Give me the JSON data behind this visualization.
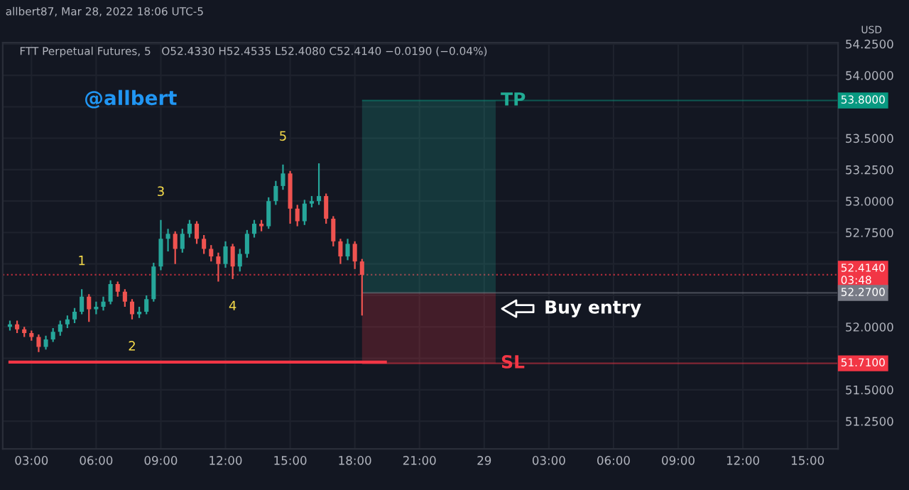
{
  "chart_data": {
    "type": "candlestick",
    "title": "allbert87, Mar 28, 2022 18:06 UTC-5",
    "subtitle": "FTT Perpetual Futures, 5   O52.4330 H52.4535 L52.4080 C52.4140 −0.0190 (−0.04%)",
    "ylabel": "USD",
    "series": [
      {
        "x": [
          "2022-03-28T02:00",
          "2022-03-28T02:20",
          "2022-03-28T02:40",
          "2022-03-28T03:00",
          "2022-03-28T03:20",
          "2022-03-28T03:40",
          "2022-03-28T04:00",
          "2022-03-28T04:20",
          "2022-03-28T04:40",
          "2022-03-28T05:00",
          "2022-03-28T05:20",
          "2022-03-28T05:40",
          "2022-03-28T06:00",
          "2022-03-28T06:20",
          "2022-03-28T06:40",
          "2022-03-28T07:00",
          "2022-03-28T07:20",
          "2022-03-28T07:40",
          "2022-03-28T08:00",
          "2022-03-28T08:20",
          "2022-03-28T08:40",
          "2022-03-28T09:00",
          "2022-03-28T09:20",
          "2022-03-28T09:40",
          "2022-03-28T10:00",
          "2022-03-28T10:20",
          "2022-03-28T10:40",
          "2022-03-28T11:00",
          "2022-03-28T11:20",
          "2022-03-28T11:40",
          "2022-03-28T12:00",
          "2022-03-28T12:20",
          "2022-03-28T12:40",
          "2022-03-28T13:00",
          "2022-03-28T13:20",
          "2022-03-28T13:40",
          "2022-03-28T14:00",
          "2022-03-28T14:20",
          "2022-03-28T14:40",
          "2022-03-28T15:00",
          "2022-03-28T15:20",
          "2022-03-28T15:40",
          "2022-03-28T16:00",
          "2022-03-28T16:20",
          "2022-03-28T16:40",
          "2022-03-28T17:00",
          "2022-03-28T17:20",
          "2022-03-28T17:40",
          "2022-03-28T18:00",
          "2022-03-28T18:20"
        ],
        "ohlc": [
          [
            52.0,
            52.05,
            51.97,
            52.02
          ],
          [
            52.02,
            52.05,
            51.95,
            51.98
          ],
          [
            51.98,
            52.0,
            51.92,
            51.95
          ],
          [
            51.95,
            51.97,
            51.89,
            51.92
          ],
          [
            51.92,
            51.94,
            51.8,
            51.84
          ],
          [
            51.84,
            51.93,
            51.82,
            51.9
          ],
          [
            51.9,
            51.99,
            51.88,
            51.96
          ],
          [
            51.96,
            52.05,
            51.93,
            52.02
          ],
          [
            52.02,
            52.09,
            51.99,
            52.06
          ],
          [
            52.06,
            52.15,
            52.03,
            52.12
          ],
          [
            52.12,
            52.3,
            52.1,
            52.24
          ],
          [
            52.24,
            52.26,
            52.04,
            52.14
          ],
          [
            52.14,
            52.2,
            52.1,
            52.16
          ],
          [
            52.16,
            52.24,
            52.13,
            52.2
          ],
          [
            52.2,
            52.37,
            52.18,
            52.34
          ],
          [
            52.34,
            52.36,
            52.24,
            52.28
          ],
          [
            52.28,
            52.3,
            52.16,
            52.2
          ],
          [
            52.2,
            52.22,
            52.06,
            52.1
          ],
          [
            52.1,
            52.16,
            52.07,
            52.12
          ],
          [
            52.12,
            52.25,
            52.1,
            52.22
          ],
          [
            52.22,
            52.51,
            52.2,
            52.48
          ],
          [
            52.48,
            52.85,
            52.45,
            52.7
          ],
          [
            52.7,
            52.78,
            52.6,
            52.74
          ],
          [
            52.74,
            52.76,
            52.5,
            52.62
          ],
          [
            52.62,
            52.78,
            52.59,
            52.74
          ],
          [
            52.74,
            52.85,
            52.71,
            52.82
          ],
          [
            52.82,
            52.84,
            52.66,
            52.7
          ],
          [
            52.7,
            52.73,
            52.58,
            52.62
          ],
          [
            52.62,
            52.65,
            52.52,
            52.56
          ],
          [
            52.56,
            52.59,
            52.36,
            52.5
          ],
          [
            52.5,
            52.68,
            52.47,
            52.64
          ],
          [
            52.64,
            52.66,
            52.38,
            52.48
          ],
          [
            52.48,
            52.62,
            52.44,
            52.58
          ],
          [
            52.58,
            52.77,
            52.55,
            52.74
          ],
          [
            52.74,
            52.85,
            52.71,
            52.82
          ],
          [
            52.82,
            52.85,
            52.76,
            52.8
          ],
          [
            52.8,
            53.03,
            52.78,
            53.0
          ],
          [
            53.0,
            53.16,
            52.97,
            53.12
          ],
          [
            53.12,
            53.29,
            53.09,
            53.22
          ],
          [
            53.22,
            53.24,
            52.82,
            52.94
          ],
          [
            52.94,
            52.97,
            52.8,
            52.84
          ],
          [
            52.84,
            53.01,
            52.81,
            52.98
          ],
          [
            52.98,
            53.04,
            52.95,
            53.0
          ],
          [
            53.0,
            53.3,
            52.97,
            53.04
          ],
          [
            53.04,
            53.06,
            52.82,
            52.86
          ],
          [
            52.86,
            52.88,
            52.64,
            52.68
          ],
          [
            52.68,
            52.7,
            52.5,
            52.56
          ],
          [
            52.56,
            52.7,
            52.53,
            52.66
          ],
          [
            52.66,
            52.68,
            52.46,
            52.52
          ],
          [
            52.52,
            52.54,
            52.09,
            52.414
          ]
        ]
      },
      {
        "type": "line",
        "color": "#f23645",
        "x": [
          "2022-03-28T02:00",
          "2022-03-28T19:25"
        ],
        "values": [
          51.72,
          51.72
        ]
      }
    ],
    "xlim": [
      "2022-03-28T01:40",
      "2022-03-29T16:25"
    ],
    "xticks": [
      {
        "value": "2022-03-28T03:00",
        "label": "03:00"
      },
      {
        "value": "2022-03-28T06:00",
        "label": "06:00"
      },
      {
        "value": "2022-03-28T09:00",
        "label": "09:00"
      },
      {
        "value": "2022-03-28T12:00",
        "label": "12:00"
      },
      {
        "value": "2022-03-28T15:00",
        "label": "15:00"
      },
      {
        "value": "2022-03-28T18:00",
        "label": "18:00"
      },
      {
        "value": "2022-03-28T21:00",
        "label": "21:00"
      },
      {
        "value": "2022-03-29",
        "label": "29"
      },
      {
        "value": "2022-03-29T03:00",
        "label": "03:00"
      },
      {
        "value": "2022-03-29T06:00",
        "label": "06:00"
      },
      {
        "value": "2022-03-29T09:00",
        "label": "09:00"
      },
      {
        "value": "2022-03-29T12:00",
        "label": "12:00"
      },
      {
        "value": "2022-03-29T15:00",
        "label": "15:00"
      }
    ],
    "ylim": [
      51.03,
      54.26
    ],
    "yticks": [
      {
        "value": 51.25,
        "label": "51.2500"
      },
      {
        "value": 51.5,
        "label": "51.5000"
      },
      {
        "value": 51.75,
        "label": null
      },
      {
        "value": 52.0,
        "label": "52.0000"
      },
      {
        "value": 52.25,
        "label": null
      },
      {
        "value": 52.5,
        "label": null
      },
      {
        "value": 52.75,
        "label": "52.7500"
      },
      {
        "value": 53.0,
        "label": "53.0000"
      },
      {
        "value": 53.25,
        "label": "53.2500"
      },
      {
        "value": 53.5,
        "label": "53.5000"
      },
      {
        "value": 53.75,
        "label": null
      },
      {
        "value": 54.0,
        "label": "54.0000"
      },
      {
        "value": 54.25,
        "label": "54.2500"
      }
    ],
    "grid": true,
    "bands": [
      {
        "axis": "y",
        "from": 52.27,
        "to": 53.8,
        "label": "TP",
        "color": "#22ab94"
      },
      {
        "axis": "y",
        "from": 51.71,
        "to": 52.27,
        "label": "SL",
        "color": "#f23645"
      }
    ],
    "ref_lines": [
      {
        "axis": "y",
        "value": 53.8,
        "label": "53.8000",
        "color": "#089981",
        "line_style": "solid"
      },
      {
        "axis": "y",
        "value": 52.414,
        "label": "52.4140\n03:48",
        "color": "#f23645",
        "line_style": "dotted"
      },
      {
        "axis": "y",
        "value": 52.27,
        "label": "52.2700",
        "color": "#787b86",
        "line_style": "solid"
      },
      {
        "axis": "y",
        "value": 51.71,
        "label": "51.7100",
        "color": "#f23645",
        "line_style": "solid"
      }
    ],
    "annotations": [
      "@allbert",
      {
        "text": "1",
        "x": "2022-03-28T05:20",
        "y": 52.3
      },
      {
        "text": "2",
        "x": "2022-03-28T07:40",
        "y": 52.06
      },
      {
        "text": "3",
        "x": "2022-03-28T09:00",
        "y": 52.85
      },
      {
        "text": "4",
        "x": "2022-03-28T12:20",
        "y": 52.38
      },
      {
        "text": "5",
        "x": "2022-03-28T14:40",
        "y": 53.29
      },
      "Buy entry"
    ]
  }
}
